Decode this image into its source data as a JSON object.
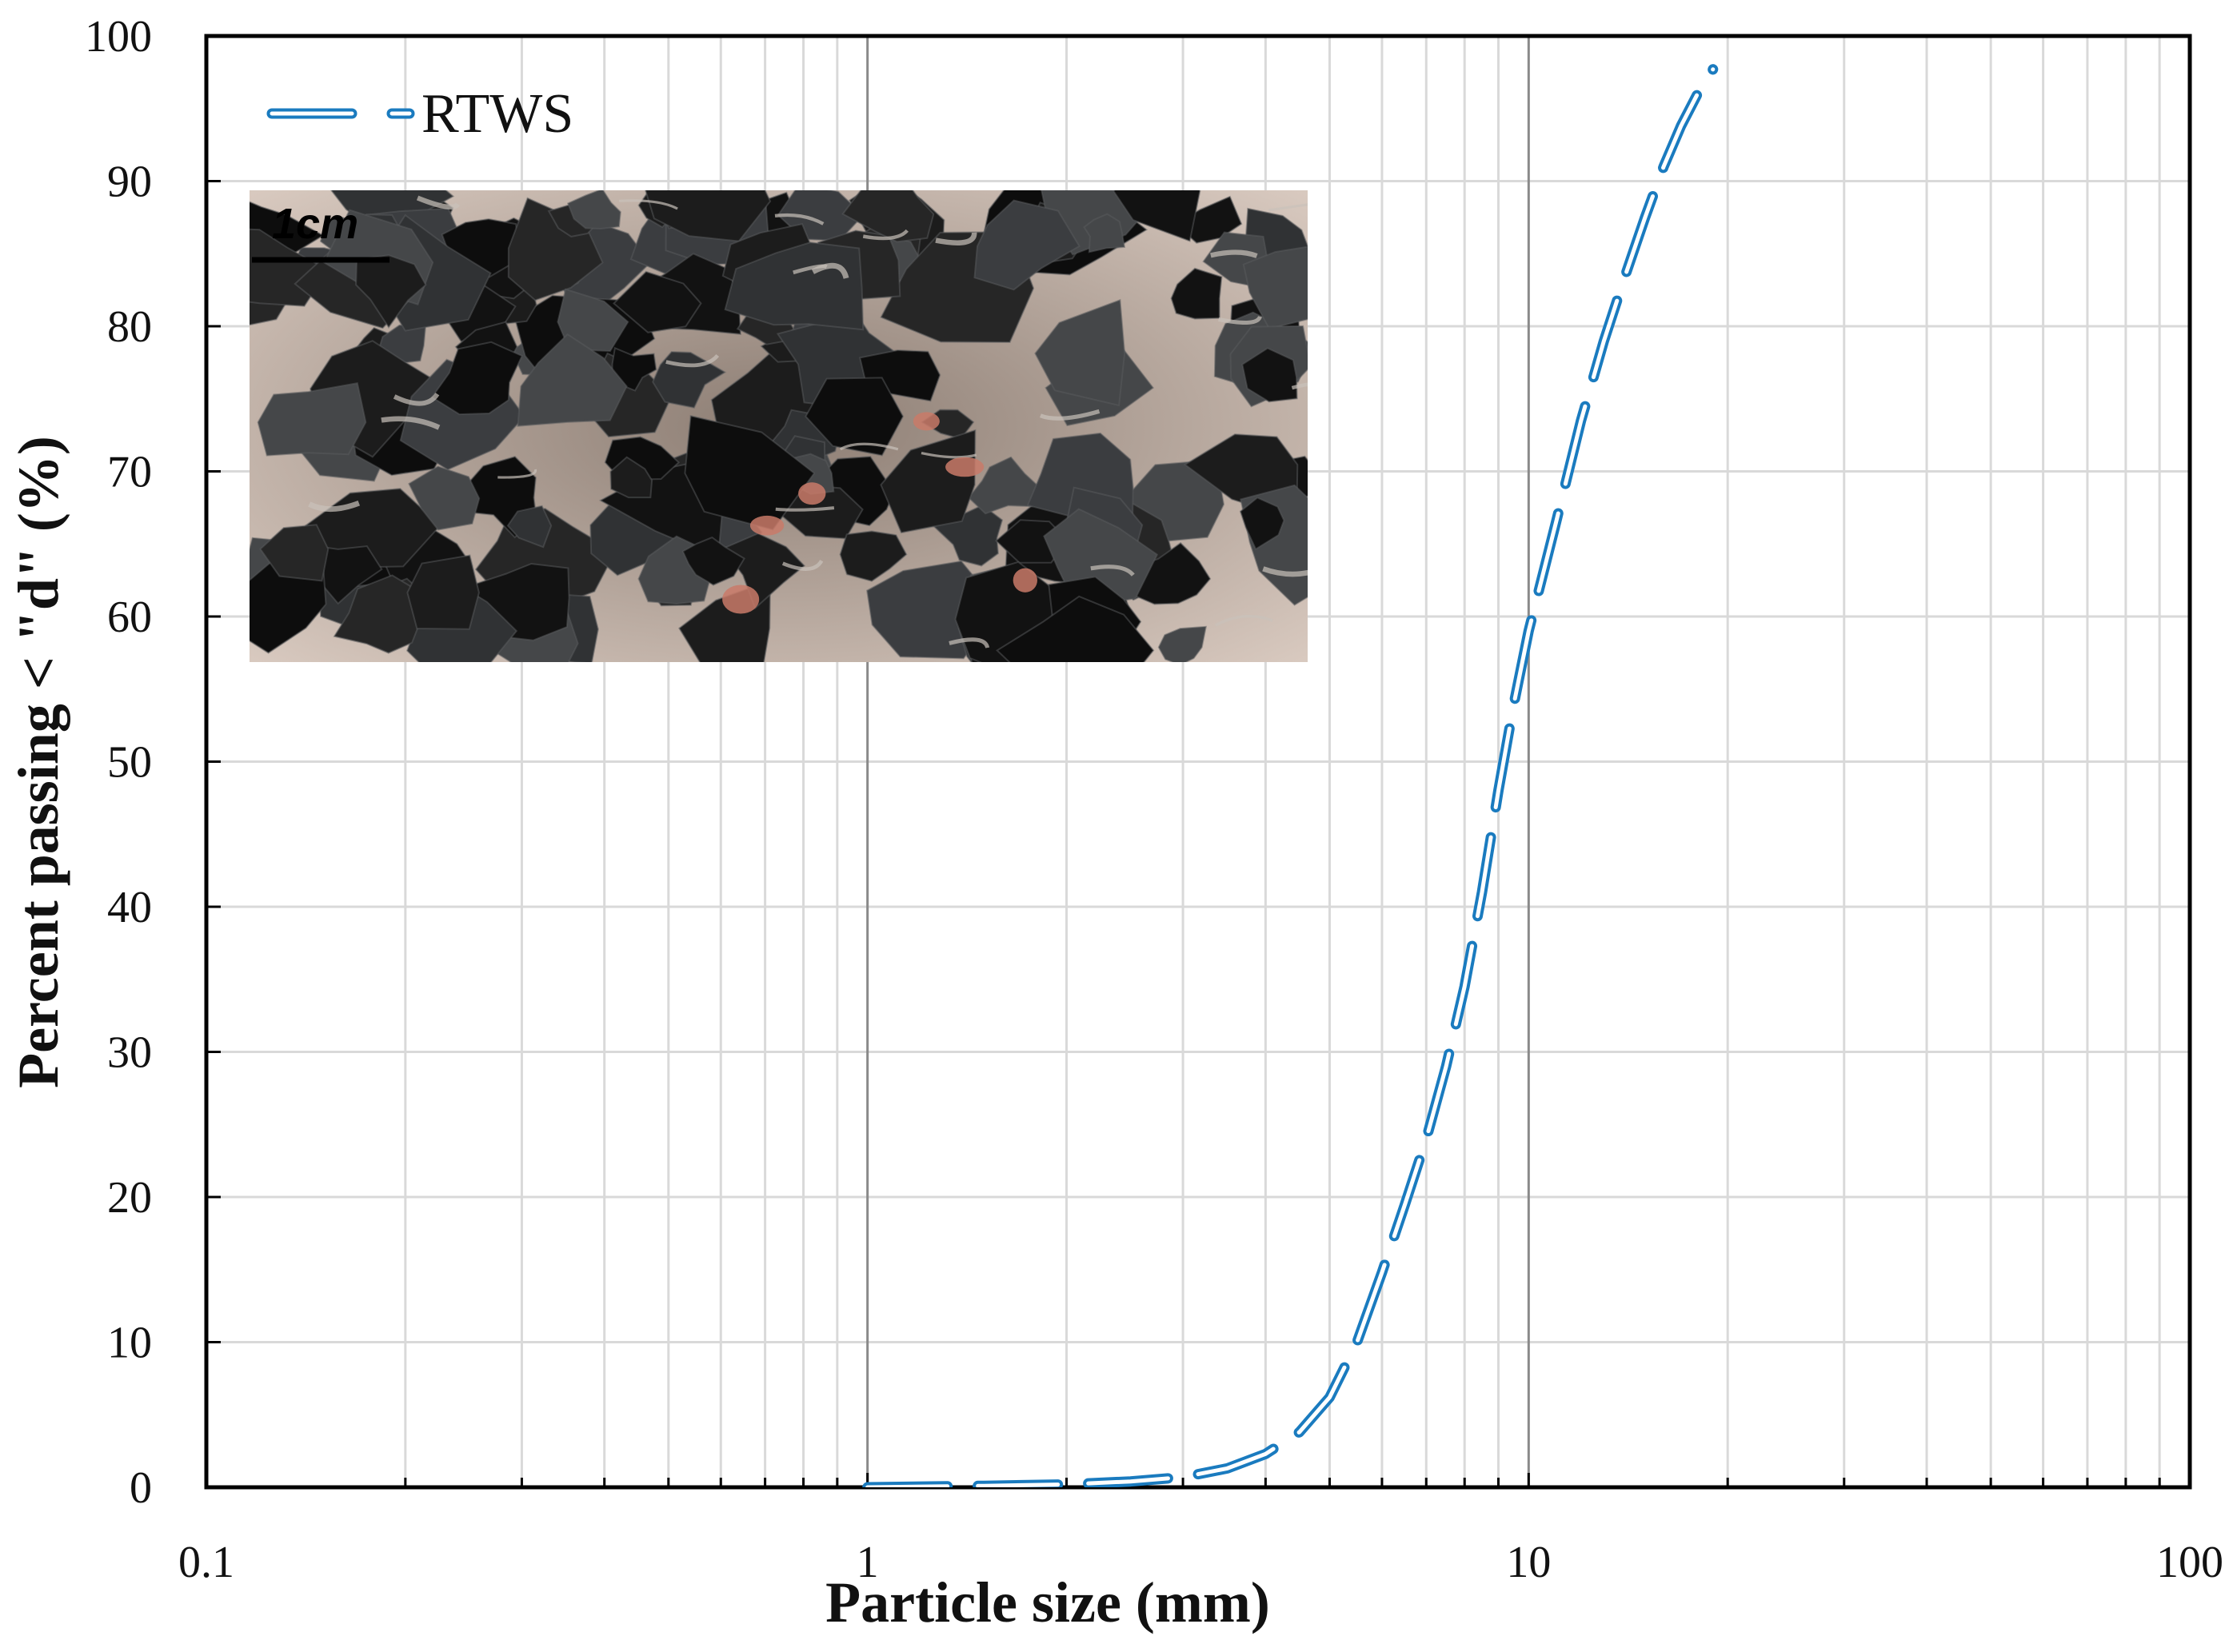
{
  "chart_data": {
    "type": "line",
    "xlabel": "Particle size (mm)",
    "ylabel": "Percent passing < \"d\" (%)",
    "x_scale": "log",
    "xlim": [
      0.1,
      100
    ],
    "ylim": [
      0,
      100
    ],
    "x_ticks": [
      "0.1",
      "1",
      "10",
      "100"
    ],
    "y_ticks": [
      "0",
      "10",
      "20",
      "30",
      "40",
      "50",
      "60",
      "70",
      "80",
      "90",
      "100"
    ],
    "grid": true,
    "legend_position": "top-left",
    "series": [
      {
        "name": "RTWS",
        "color": "#1a7bbf",
        "line_style": "dashed-outline",
        "x": [
          1.0,
          1.5,
          2.0,
          2.5,
          3.0,
          3.5,
          4.0,
          4.5,
          5.0,
          5.5,
          6.0,
          6.5,
          7.0,
          7.5,
          8.0,
          8.5,
          9.0,
          9.5,
          10.0,
          11.0,
          12.0,
          13.0,
          14.0,
          15.0,
          16.0,
          17.0,
          18.0,
          19.0
        ],
        "y": [
          0.0,
          0.1,
          0.2,
          0.4,
          0.7,
          1.3,
          2.3,
          3.8,
          6.2,
          10.0,
          14.8,
          19.5,
          24.0,
          29.0,
          34.5,
          41.0,
          48.0,
          54.0,
          59.0,
          66.5,
          73.5,
          79.0,
          83.5,
          87.5,
          91.0,
          93.8,
          96.0,
          97.7
        ]
      }
    ]
  },
  "inset_photo": {
    "scale_bar_label": "1cm"
  }
}
